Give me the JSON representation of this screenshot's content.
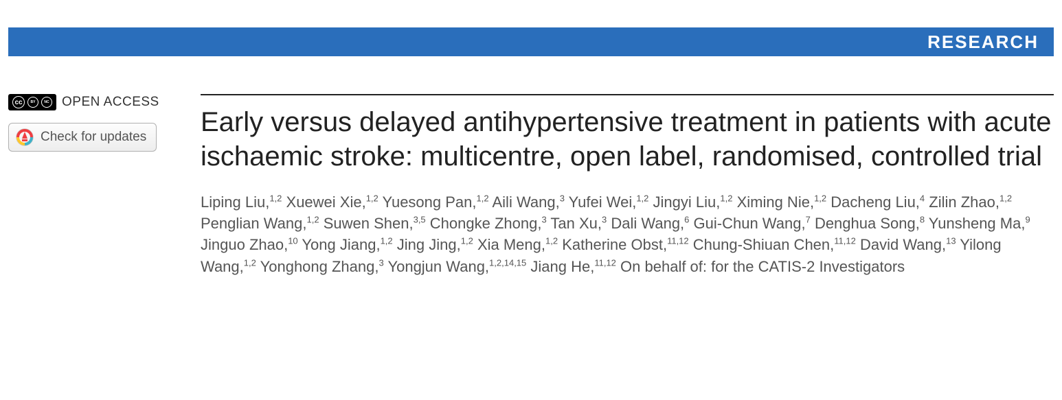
{
  "banner": {
    "label": "RESEARCH",
    "bg_color": "#2a6ebb",
    "text_color": "#ffffff"
  },
  "sidebar": {
    "open_access_label": "OPEN ACCESS",
    "cc_icons": [
      "cc",
      "by",
      "nc"
    ],
    "updates_label": "Check for updates"
  },
  "article": {
    "title": "Early versus delayed antihypertensive treatment in patients with acute ischaemic stroke: multicentre, open label, randomised, controlled trial",
    "authors": [
      {
        "name": "Liping Liu",
        "affil": "1,2"
      },
      {
        "name": "Xuewei Xie",
        "affil": "1,2"
      },
      {
        "name": "Yuesong Pan",
        "affil": "1,2"
      },
      {
        "name": "Aili Wang",
        "affil": "3"
      },
      {
        "name": "Yufei Wei",
        "affil": "1,2"
      },
      {
        "name": "Jingyi Liu",
        "affil": "1,2"
      },
      {
        "name": "Ximing Nie",
        "affil": "1,2"
      },
      {
        "name": "Dacheng Liu",
        "affil": "4"
      },
      {
        "name": "Zilin Zhao",
        "affil": "1,2"
      },
      {
        "name": "Penglian Wang",
        "affil": "1,2"
      },
      {
        "name": "Suwen Shen",
        "affil": "3,5"
      },
      {
        "name": "Chongke Zhong",
        "affil": "3"
      },
      {
        "name": "Tan Xu",
        "affil": "3"
      },
      {
        "name": "Dali Wang",
        "affil": "6"
      },
      {
        "name": "Gui-Chun Wang",
        "affil": "7"
      },
      {
        "name": "Denghua Song",
        "affil": "8"
      },
      {
        "name": "Yunsheng Ma",
        "affil": "9"
      },
      {
        "name": "Jinguo Zhao",
        "affil": "10"
      },
      {
        "name": "Yong Jiang",
        "affil": "1,2"
      },
      {
        "name": "Jing Jing",
        "affil": "1,2"
      },
      {
        "name": "Xia Meng",
        "affil": "1,2"
      },
      {
        "name": "Katherine Obst",
        "affil": "11,12"
      },
      {
        "name": "Chung-Shiuan Chen",
        "affil": "11,12"
      },
      {
        "name": "David Wang",
        "affil": "13"
      },
      {
        "name": "Yilong Wang",
        "affil": "1,2"
      },
      {
        "name": "Yonghong Zhang",
        "affil": "3"
      },
      {
        "name": "Yongjun Wang",
        "affil": "1,2,14,15"
      },
      {
        "name": "Jiang He",
        "affil": "11,12"
      }
    ],
    "behalf_text": "On behalf of: for the CATIS-2 Investigators"
  },
  "style": {
    "title_fontsize": 40,
    "author_fontsize": 22,
    "banner_fontsize": 26,
    "title_color": "#222222",
    "author_color": "#555555",
    "rule_color": "#222222"
  }
}
